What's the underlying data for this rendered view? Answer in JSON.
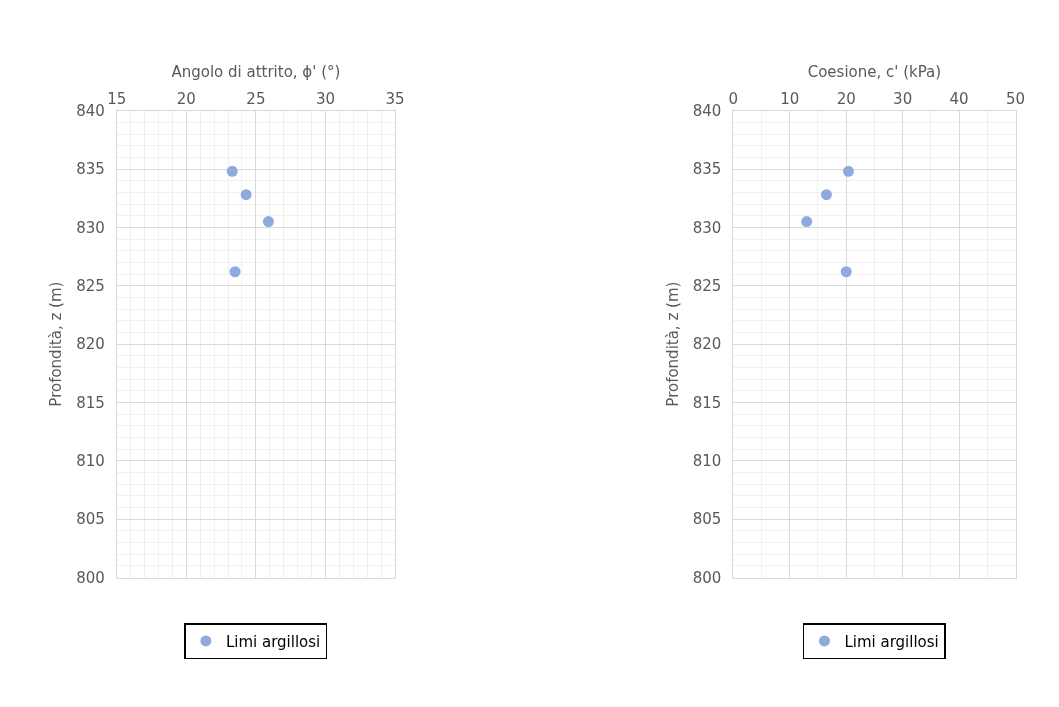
{
  "chart_data": [
    {
      "type": "scatter",
      "xlabel": "Angolo di attrito, ϕ' (°)",
      "ylabel": "Profondità, z (m)",
      "xlim": [
        15,
        35
      ],
      "xticks": [
        15,
        20,
        25,
        30,
        35
      ],
      "ylim": [
        800,
        840
      ],
      "yticks": [
        800,
        805,
        810,
        815,
        820,
        825,
        830,
        835,
        840
      ],
      "grid": true,
      "legend": "bottom",
      "marker": "circle",
      "series": [
        {
          "name": "Limi argillosi",
          "color": "#8faadc",
          "x": [
            23.3,
            24.3,
            25.9,
            23.5
          ],
          "values": [
            834.8,
            832.8,
            830.5,
            826.2
          ]
        }
      ]
    },
    {
      "type": "scatter",
      "xlabel": "Coesione, c' (kPa)",
      "ylabel": "Profondità, z (m)",
      "xlim": [
        0,
        50
      ],
      "xticks": [
        0,
        10,
        20,
        30,
        40,
        50
      ],
      "ylim": [
        800,
        840
      ],
      "yticks": [
        800,
        805,
        810,
        815,
        820,
        825,
        830,
        835,
        840
      ],
      "grid": true,
      "legend": "bottom",
      "marker": "circle",
      "series": [
        {
          "name": "Limi argillosi",
          "color": "#8faadc",
          "x": [
            20.4,
            16.5,
            13.0,
            20.0
          ],
          "values": [
            834.8,
            832.8,
            830.5,
            826.2
          ]
        }
      ]
    }
  ]
}
